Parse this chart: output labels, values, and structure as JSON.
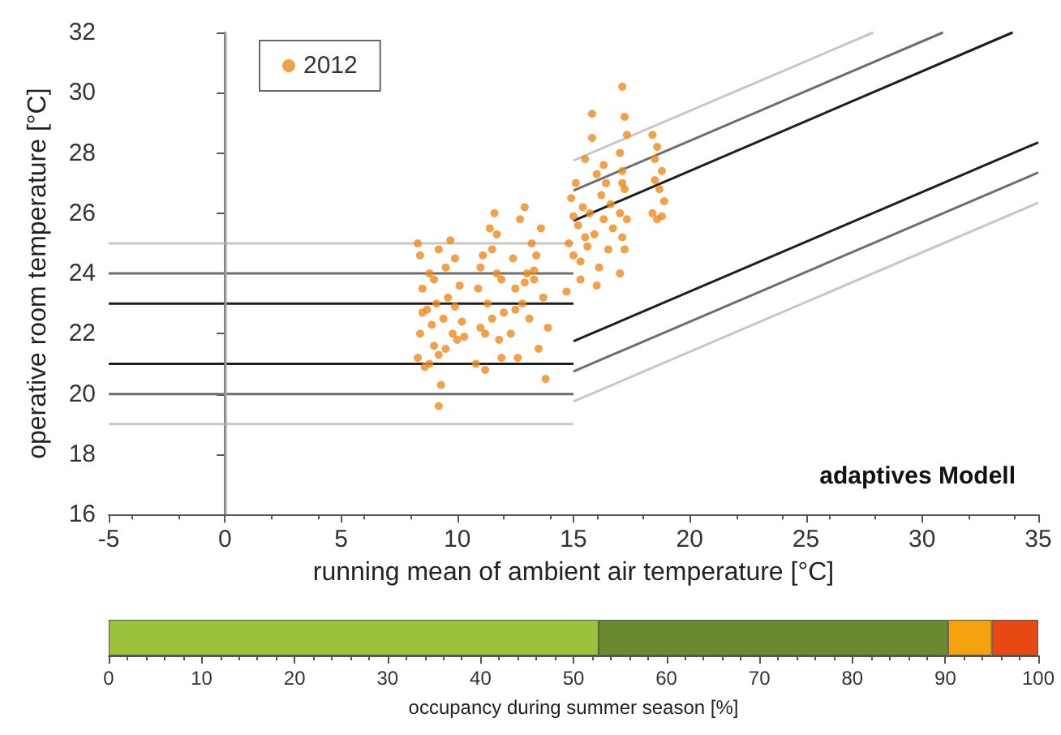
{
  "chart_data": [
    {
      "type": "scatter",
      "xlabel": "running mean of ambient air temperature [°C]",
      "ylabel": "operative room temperature [°C]",
      "xlim": [
        -5,
        35
      ],
      "xticks": [
        -5,
        0,
        5,
        10,
        15,
        20,
        25,
        30,
        35
      ],
      "ylim": [
        16,
        32
      ],
      "yticks": [
        16,
        18,
        20,
        22,
        24,
        26,
        28,
        30,
        32
      ],
      "grid": false,
      "legend": "top left",
      "annotations": [
        "adaptives Modell"
      ],
      "ref_lines": [
        {
          "axis": "x",
          "value": 0,
          "color": "#a0a0a0"
        }
      ],
      "series": [
        {
          "name": "2012",
          "type": "scatter",
          "marker": "circle",
          "color": "#f08a1c",
          "x": [
            8.3,
            8.3,
            8.4,
            8.4,
            8.5,
            8.6,
            8.7,
            8.8,
            8.9,
            9.0,
            9.1,
            9.2,
            9.2,
            9.3,
            9.4,
            9.5,
            9.6,
            9.7,
            9.8,
            9.9,
            10.0,
            10.1,
            10.2,
            8.5,
            9.0,
            9.5,
            8.8,
            9.2,
            9.9,
            10.3,
            10.8,
            10.9,
            11.0,
            11.1,
            11.2,
            11.3,
            11.4,
            11.5,
            11.6,
            11.7,
            11.8,
            11.9,
            12.0,
            11.2,
            11.5,
            11.0,
            11.7,
            11.9,
            12.3,
            12.4,
            12.5,
            12.6,
            12.7,
            12.8,
            12.9,
            13.0,
            13.1,
            13.2,
            13.3,
            13.4,
            13.5,
            13.6,
            13.7,
            13.8,
            13.9,
            12.9,
            13.3,
            12.5,
            14.7,
            14.8,
            14.9,
            15.0,
            15.1,
            15.2,
            15.3,
            15.4,
            15.5,
            15.6,
            15.7,
            15.8,
            15.9,
            16.0,
            16.1,
            16.2,
            16.3,
            16.4,
            16.5,
            16.6,
            16.7,
            15.8,
            15.3,
            15.0,
            16.0,
            15.5,
            16.3,
            17.0,
            17.0,
            17.0,
            17.1,
            17.1,
            17.1,
            17.2,
            17.2,
            17.2,
            17.3,
            17.3,
            17.1,
            18.4,
            18.4,
            18.5,
            18.6,
            18.6,
            18.7,
            18.8,
            18.8,
            18.9,
            18.5
          ],
          "values": [
            25.0,
            21.2,
            24.6,
            22.0,
            23.5,
            20.9,
            22.8,
            24.0,
            22.3,
            21.6,
            23.0,
            19.6,
            24.8,
            20.3,
            22.5,
            21.5,
            23.2,
            25.1,
            22.0,
            24.5,
            21.8,
            23.6,
            22.4,
            22.7,
            23.8,
            24.2,
            21.0,
            21.3,
            22.9,
            21.9,
            21.0,
            23.5,
            22.2,
            24.6,
            20.8,
            23.0,
            25.5,
            22.5,
            26.0,
            24.0,
            21.8,
            23.8,
            22.7,
            22.0,
            24.8,
            24.2,
            25.3,
            21.2,
            22.0,
            24.5,
            23.5,
            21.2,
            25.8,
            23.0,
            26.2,
            24.0,
            22.5,
            25.0,
            23.8,
            24.6,
            21.5,
            25.5,
            23.2,
            20.5,
            22.2,
            23.7,
            24.1,
            22.8,
            23.4,
            25.0,
            26.5,
            24.6,
            27.0,
            25.6,
            23.8,
            26.2,
            27.8,
            24.9,
            26.0,
            29.3,
            25.3,
            27.3,
            24.2,
            26.6,
            25.8,
            27.0,
            24.8,
            26.3,
            25.5,
            28.5,
            24.4,
            25.9,
            23.6,
            25.2,
            27.6,
            24.0,
            26.0,
            28.0,
            25.2,
            27.4,
            30.2,
            24.8,
            26.8,
            29.2,
            25.8,
            28.6,
            27.0,
            28.6,
            26.0,
            27.8,
            25.8,
            28.2,
            26.8,
            27.4,
            25.9,
            26.4,
            27.1
          ]
        },
        {
          "type": "line",
          "color": "#c8c8c8",
          "x": [
            -5,
            15
          ],
          "values": [
            25,
            25
          ]
        },
        {
          "type": "line",
          "color": "#6e6e6e",
          "x": [
            -5,
            15
          ],
          "values": [
            24,
            24
          ]
        },
        {
          "type": "line",
          "color": "#1e1e1e",
          "x": [
            -5,
            15
          ],
          "values": [
            23,
            23
          ]
        },
        {
          "type": "line",
          "color": "#1e1e1e",
          "x": [
            -5,
            15
          ],
          "values": [
            21,
            21
          ]
        },
        {
          "type": "line",
          "color": "#6e6e6e",
          "x": [
            -5,
            15
          ],
          "values": [
            20,
            20
          ]
        },
        {
          "type": "line",
          "color": "#c8c8c8",
          "x": [
            -5,
            15
          ],
          "values": [
            19,
            19
          ]
        },
        {
          "type": "line",
          "color": "#c8c8c8",
          "x": [
            15,
            27.9
          ],
          "values": [
            27.75,
            32
          ]
        },
        {
          "type": "line",
          "color": "#6e6e6e",
          "x": [
            15,
            30.9
          ],
          "values": [
            26.75,
            32
          ]
        },
        {
          "type": "line",
          "color": "#1e1e1e",
          "x": [
            15,
            33.9
          ],
          "values": [
            25.75,
            32
          ]
        },
        {
          "type": "line",
          "color": "#1e1e1e",
          "x": [
            15,
            35
          ],
          "values": [
            21.75,
            28.35
          ]
        },
        {
          "type": "line",
          "color": "#6e6e6e",
          "x": [
            15,
            35
          ],
          "values": [
            20.75,
            27.35
          ]
        },
        {
          "type": "line",
          "color": "#c8c8c8",
          "x": [
            15,
            35
          ],
          "values": [
            19.75,
            26.35
          ]
        }
      ]
    },
    {
      "type": "bar",
      "orientation": "horizontal",
      "stacked": true,
      "categories": [
        null
      ],
      "xlabel": "occupancy during summer season [%]",
      "xlim": [
        0,
        100
      ],
      "xticks": [
        0,
        10,
        20,
        30,
        40,
        50,
        60,
        70,
        80,
        90,
        100
      ],
      "series": [
        {
          "color": "#9bc23a",
          "values": [
            52.7
          ]
        },
        {
          "color": "#6b8a2e",
          "values": [
            37.6
          ]
        },
        {
          "color": "#f5a20f",
          "values": [
            4.7
          ]
        },
        {
          "color": "#e84812",
          "values": [
            5.0
          ]
        }
      ]
    }
  ]
}
